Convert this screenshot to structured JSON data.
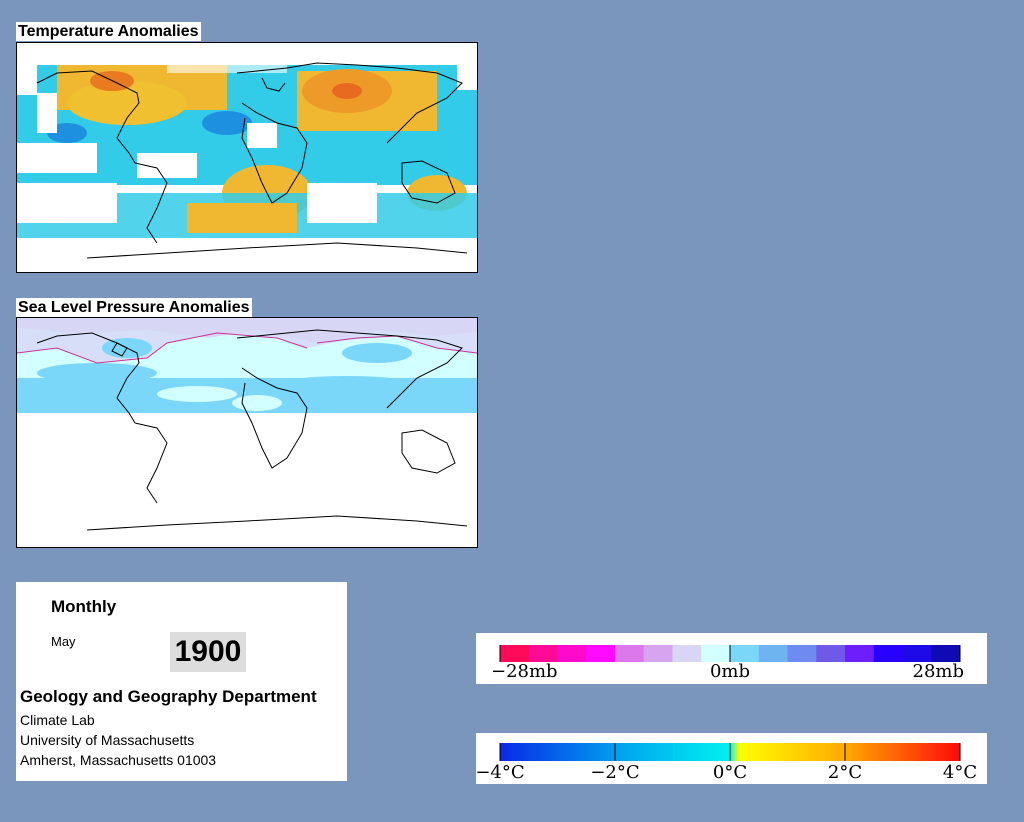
{
  "temperature_map": {
    "title": "Temperature Anomalies"
  },
  "pressure_map": {
    "title": "Sea Level Pressure Anomalies"
  },
  "info_panel": {
    "frequency": "Monthly",
    "month": "May",
    "year": "1900",
    "department": "Geology and Geography Department",
    "lab": "Climate Lab",
    "university": "University of Massachusetts",
    "address": "Amherst, Massachusetts 01003"
  },
  "pressure_legend": {
    "labels": [
      "−28mb",
      "0mb",
      "28mb"
    ],
    "colors": [
      "#ff0a5a",
      "#ff0a96",
      "#ff0acd",
      "#ff0aff",
      "#dc78eb",
      "#d7a5f0",
      "#d7d7f5",
      "#d2ffff",
      "#7bd7fa",
      "#6eb4f0",
      "#6e8cf0",
      "#6e5ae6",
      "#6e1efa",
      "#2800ff",
      "#1e0ae6",
      "#0f0ab4"
    ]
  },
  "temperature_legend": {
    "labels": [
      "−4°C",
      "−2°C",
      "0°C",
      "2°C",
      "4°C"
    ],
    "colors": [
      "#0a28e6",
      "#00aaf0",
      "#00f0f0",
      "#ffff00",
      "#ffaa00",
      "#ff0a0a"
    ]
  }
}
